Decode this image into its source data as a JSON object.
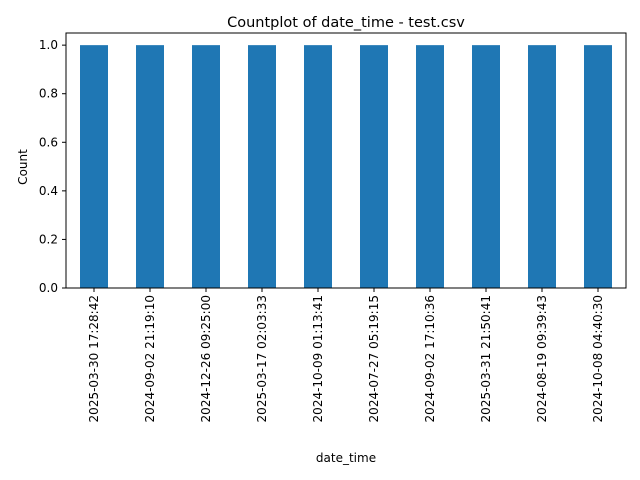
{
  "chart_data": {
    "type": "bar",
    "title": "Countplot of date_time - test.csv",
    "xlabel": "date_time",
    "ylabel": "Count",
    "categories": [
      "2025-03-30 17:28:42",
      "2024-09-02 21:19:10",
      "2024-12-26 09:25:00",
      "2025-03-17 02:03:33",
      "2024-10-09 01:13:41",
      "2024-07-27 05:19:15",
      "2024-09-02 17:10:36",
      "2025-03-31 21:50:41",
      "2024-08-19 09:39:43",
      "2024-10-08 04:40:30"
    ],
    "values": [
      1,
      1,
      1,
      1,
      1,
      1,
      1,
      1,
      1,
      1
    ],
    "ylim": [
      0,
      1.05
    ],
    "yticks": [
      "0.0",
      "0.2",
      "0.4",
      "0.6",
      "0.8",
      "1.0"
    ],
    "bar_color": "#1f77b4",
    "grid": false,
    "legend": "none"
  }
}
